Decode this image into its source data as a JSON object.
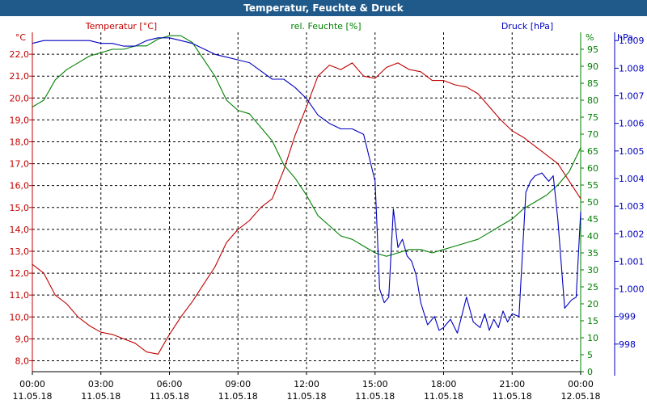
{
  "window_title": "Temperatur, Feuchte & Druck",
  "colors": {
    "temp": "#c00000",
    "hum": "#008000",
    "press": "#0000c0",
    "grid": "#000000",
    "titlebar": "#1f5a8a"
  },
  "chart_data": {
    "type": "line",
    "title": "Temperatur, Feuchte & Druck",
    "grid": true,
    "x_tick_labels": [
      {
        "time": "00:00",
        "date": "11.05.18"
      },
      {
        "time": "03:00",
        "date": "11.05.18"
      },
      {
        "time": "06:00",
        "date": "11.05.18"
      },
      {
        "time": "09:00",
        "date": "11.05.18"
      },
      {
        "time": "12:00",
        "date": "11.05.18"
      },
      {
        "time": "15:00",
        "date": "11.05.18"
      },
      {
        "time": "18:00",
        "date": "11.05.18"
      },
      {
        "time": "21:00",
        "date": "11.05.18"
      },
      {
        "time": "00:00",
        "date": "12.05.18"
      }
    ],
    "x_range_hours": [
      0,
      24
    ],
    "axes": {
      "temp": {
        "label": "Temperatur [°C]",
        "unit": "°C",
        "range": [
          7.5,
          23.0
        ],
        "ticks": [
          "8,0",
          "9,0",
          "10,0",
          "11,0",
          "12,0",
          "13,0",
          "14,0",
          "15,0",
          "16,0",
          "17,0",
          "18,0",
          "19,0",
          "20,0",
          "21,0",
          "22,0"
        ]
      },
      "hum": {
        "label": "rel. Feuchte [%]",
        "unit": "%",
        "range": [
          0,
          100
        ],
        "ticks": [
          "0",
          "5",
          "10",
          "15",
          "20",
          "25",
          "30",
          "35",
          "40",
          "45",
          "50",
          "55",
          "60",
          "65",
          "70",
          "75",
          "80",
          "85",
          "90",
          "95"
        ]
      },
      "press": {
        "label": "Druck [hPa]",
        "unit": "hPa",
        "range": [
          997.0,
          1009.3
        ],
        "ticks": [
          "998",
          "999",
          "1.000",
          "1.001",
          "1.002",
          "1.003",
          "1.004",
          "1.005",
          "1.006",
          "1.007",
          "1.008",
          "1.009"
        ]
      }
    },
    "series": [
      {
        "name": "Temperatur [°C]",
        "axis": "temp",
        "x": [
          0,
          0.5,
          1,
          1.5,
          2,
          2.5,
          3,
          3.5,
          4,
          4.5,
          5,
          5.5,
          6,
          6.5,
          7,
          7.5,
          8,
          8.5,
          9,
          9.5,
          10,
          10.5,
          11,
          11.5,
          12,
          12.5,
          13,
          13.5,
          14,
          14.5,
          15,
          15.5,
          16,
          16.5,
          17,
          17.5,
          18,
          18.5,
          19,
          19.5,
          20,
          20.5,
          21,
          21.5,
          22,
          22.5,
          23,
          23.5,
          24
        ],
        "y": [
          12.4,
          12.0,
          11.0,
          10.6,
          10.0,
          9.6,
          9.3,
          9.2,
          9.0,
          8.8,
          8.4,
          8.3,
          9.2,
          10.0,
          10.7,
          11.5,
          12.3,
          13.4,
          14.0,
          14.4,
          15.0,
          15.4,
          16.7,
          18.3,
          19.6,
          21.0,
          21.5,
          21.3,
          21.6,
          21.0,
          20.9,
          21.4,
          21.6,
          21.3,
          21.2,
          20.8,
          20.8,
          20.6,
          20.5,
          20.2,
          19.6,
          19.0,
          18.5,
          18.2,
          17.8,
          17.4,
          17.0,
          16.2,
          15.4
        ]
      },
      {
        "name": "rel. Feuchte [%]",
        "axis": "hum",
        "x": [
          0,
          0.5,
          1,
          1.5,
          2,
          2.5,
          3,
          3.5,
          4,
          4.5,
          5,
          5.5,
          6,
          6.5,
          7,
          7.5,
          8,
          8.5,
          9,
          9.5,
          10,
          10.5,
          11,
          11.5,
          12,
          12.5,
          13,
          13.5,
          14,
          14.5,
          15,
          15.5,
          16,
          16.5,
          17,
          17.5,
          18,
          18.5,
          19,
          19.5,
          20,
          20.5,
          21,
          21.5,
          22,
          22.5,
          23,
          23.5,
          24
        ],
        "y": [
          78,
          80,
          86,
          89,
          91,
          93,
          94,
          95,
          95,
          96,
          96,
          98,
          99,
          99,
          97,
          92,
          87,
          80,
          77,
          76,
          72,
          68,
          61,
          57,
          52,
          46,
          43,
          40,
          39,
          37,
          35,
          34,
          35,
          36,
          36,
          35,
          36,
          37,
          38,
          39,
          41,
          43,
          45,
          48,
          50,
          52,
          55,
          59,
          66
        ]
      },
      {
        "name": "Druck [hPa]",
        "axis": "press",
        "x": [
          0,
          0.5,
          1,
          1.5,
          2,
          2.5,
          3,
          3.5,
          4,
          4.5,
          5,
          5.5,
          6,
          6.5,
          7,
          7.5,
          8,
          8.5,
          9,
          9.5,
          10,
          10.5,
          11,
          11.5,
          12,
          12.5,
          13,
          13.5,
          14,
          14.5,
          15,
          15.2,
          15.4,
          15.6,
          15.8,
          16,
          16.2,
          16.4,
          16.6,
          16.8,
          17,
          17.3,
          17.6,
          17.8,
          18,
          18.3,
          18.6,
          19,
          19.3,
          19.6,
          19.8,
          20,
          20.2,
          20.4,
          20.6,
          20.8,
          21,
          21.3,
          21.6,
          21.8,
          22,
          22.3,
          22.6,
          22.8,
          23,
          23.3,
          23.6,
          23.8,
          24
        ],
        "y": [
          1008.9,
          1009.0,
          1009.0,
          1009.0,
          1009.0,
          1009.0,
          1008.9,
          1008.9,
          1008.8,
          1008.8,
          1009.0,
          1009.1,
          1009.1,
          1009.0,
          1008.9,
          1008.7,
          1008.5,
          1008.4,
          1008.3,
          1008.2,
          1007.9,
          1007.6,
          1007.6,
          1007.3,
          1006.9,
          1006.3,
          1006.0,
          1005.8,
          1005.8,
          1005.6,
          1003.9,
          1000.0,
          999.5,
          999.7,
          1002.9,
          1001.5,
          1001.8,
          1001.2,
          1001.0,
          1000.5,
          999.5,
          998.7,
          999.0,
          998.5,
          998.6,
          998.9,
          998.4,
          999.7,
          998.8,
          998.6,
          999.1,
          998.5,
          998.9,
          998.6,
          999.2,
          998.8,
          999.1,
          999.0,
          1003.5,
          1003.9,
          1004.1,
          1004.2,
          1003.9,
          1004.1,
          1002.5,
          999.3,
          999.6,
          999.7,
          1002.8
        ]
      }
    ]
  }
}
